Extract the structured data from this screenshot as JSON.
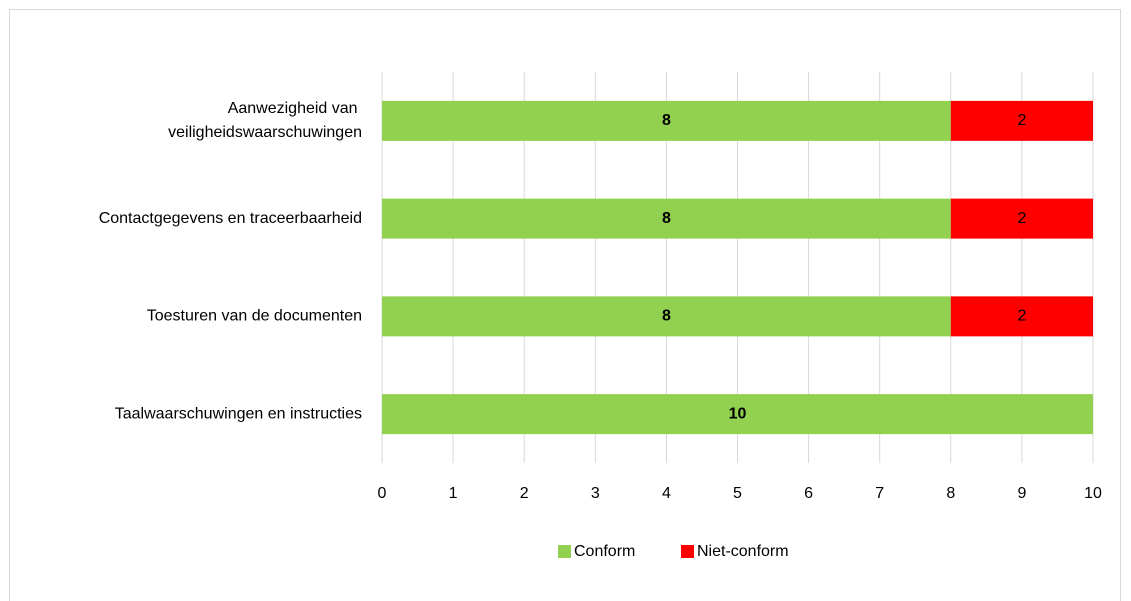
{
  "chart_data": {
    "type": "stacked-bar-horizontal",
    "categories": [
      "Aanwezigheid van veiligheidswaarschuwingen",
      "Contactgegevens en traceerbaarheid",
      "Toesturen van de documenten",
      "Taalwaarschuwingen en instructies"
    ],
    "series": [
      {
        "name": "Conform",
        "color": "#92d050",
        "values": [
          8,
          8,
          8,
          10
        ]
      },
      {
        "name": "Niet-conform",
        "color": "#ff0000",
        "values": [
          2,
          2,
          2,
          null
        ]
      }
    ],
    "xlim": [
      0,
      10
    ],
    "xticks": [
      0,
      1,
      2,
      3,
      4,
      5,
      6,
      7,
      8,
      9,
      10
    ],
    "grid": true,
    "legend": "bottom"
  }
}
